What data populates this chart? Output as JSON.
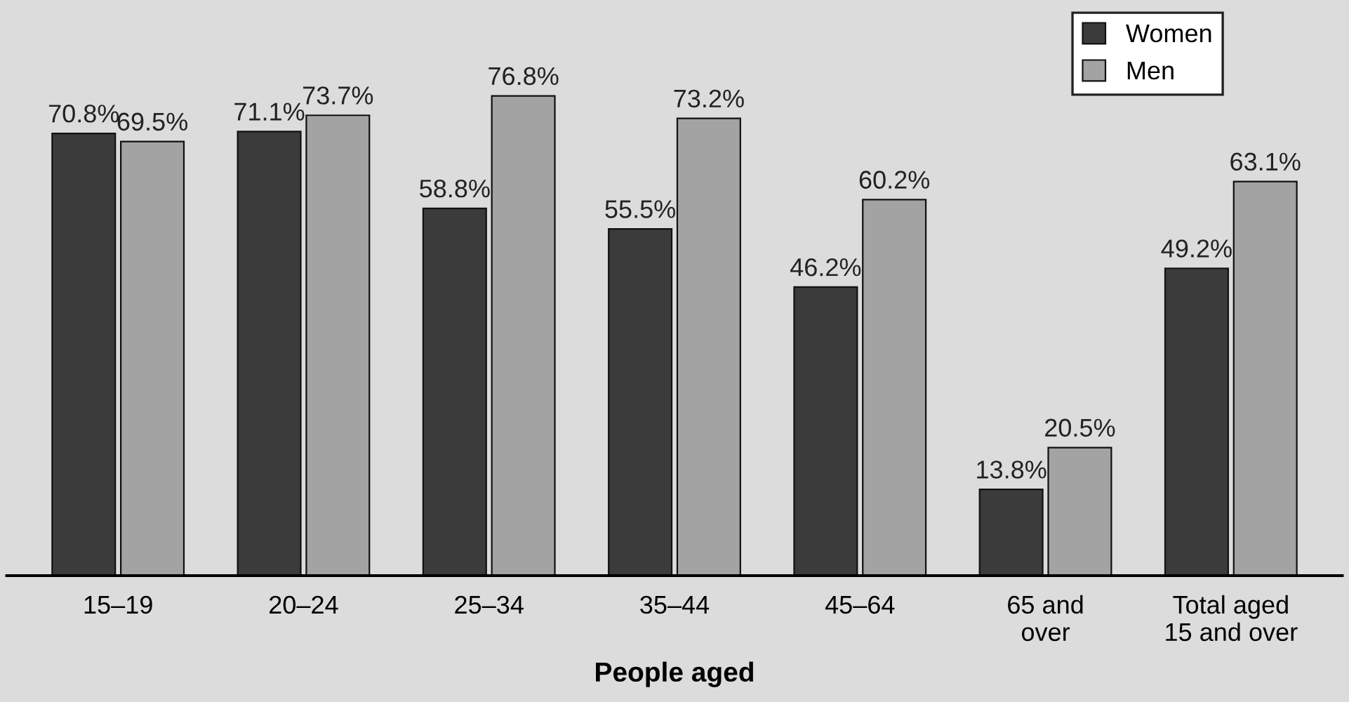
{
  "chart_data": {
    "type": "bar",
    "xlabel": "People aged",
    "categories": [
      "15–19",
      "20–24",
      "25–34",
      "35–44",
      "45–64",
      "65 and\nover",
      "Total aged\n15 and over"
    ],
    "series": [
      {
        "name": "Women",
        "color": "#3b3b3b",
        "values": [
          70.8,
          71.1,
          58.8,
          55.5,
          46.2,
          13.8,
          49.2
        ],
        "value_labels": [
          "70.8%",
          "71.1%",
          "58.8%",
          "55.5%",
          "46.2%",
          "13.8%",
          "49.2%"
        ]
      },
      {
        "name": "Men",
        "color": "#a3a3a3",
        "values": [
          69.5,
          73.7,
          76.8,
          73.2,
          60.2,
          20.5,
          63.1
        ],
        "value_labels": [
          "69.5%",
          "73.7%",
          "76.8%",
          "73.2%",
          "60.2%",
          "20.5%",
          "63.1%"
        ]
      }
    ],
    "legend": "top right",
    "grid": false
  }
}
